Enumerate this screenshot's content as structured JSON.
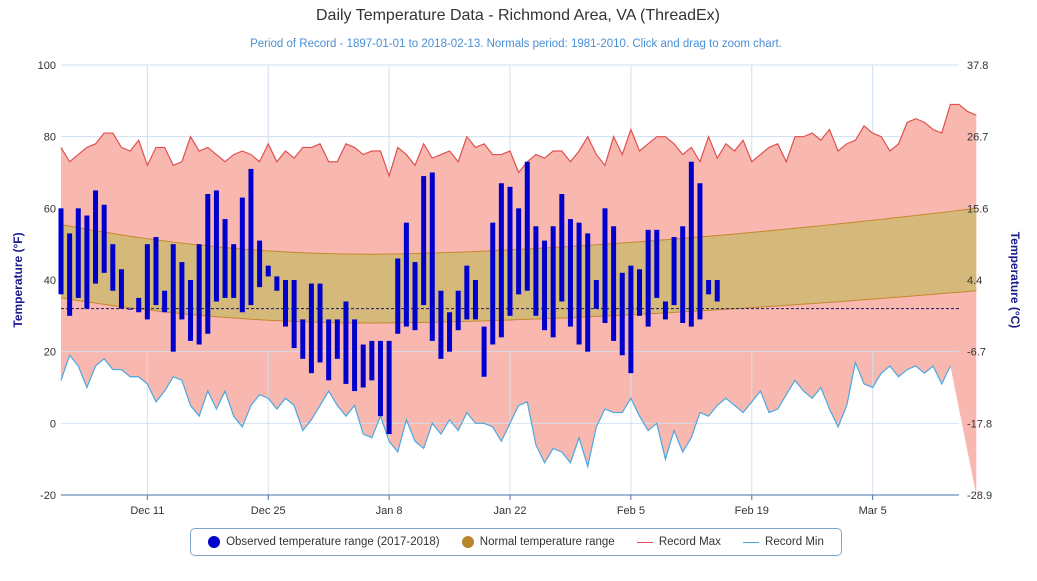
{
  "chart_data": {
    "type": "area",
    "title": "Daily Temperature Data - Richmond Area, VA (ThreadEx)",
    "subtitle": "Period of Record - 1897-01-01 to 2018-02-13. Normals period: 1981-2010. Click and drag to zoom chart.",
    "ylabel": "Temperature (°F)",
    "ylabel_right": "Temperature (°C)",
    "ylim": [
      -20,
      100
    ],
    "y_ticks": [
      "-20",
      "0",
      "20",
      "40",
      "60",
      "80",
      "100"
    ],
    "y_ticks_right": [
      "-28.9",
      "-17.8",
      "-6.7",
      "4.4",
      "15.6",
      "26.7",
      "37.8"
    ],
    "x_tick_labels": [
      "Dec 11",
      "Dec 25",
      "Jan 8",
      "Jan 22",
      "Feb 5",
      "Feb 19",
      "Mar 5"
    ],
    "x_tick_dates": [
      "2017-12-11",
      "2017-12-25",
      "2018-01-08",
      "2018-01-22",
      "2018-02-05",
      "2018-02-19",
      "2018-03-05"
    ],
    "x_range": [
      "2017-12-01",
      "2018-03-15"
    ],
    "freezing_line": 32,
    "grid": true,
    "legend_position": "bottom",
    "colors": {
      "observed": "#0000cc",
      "normal_band": "#d4b97a",
      "record_max_fill": "#f8b8b0",
      "record_max_line": "#e05050",
      "record_min_fill": "#dcfafa",
      "record_min_line": "#4aa8e0",
      "grid": "#cfe0f0"
    },
    "series": [
      {
        "name": "Observed temperature range (2017-2018)",
        "start_date": "2017-12-01",
        "low": [
          36,
          30,
          35,
          32,
          39,
          42,
          37,
          32,
          32,
          31,
          29,
          33,
          31,
          20,
          29,
          23,
          22,
          25,
          34,
          35,
          35,
          31,
          33,
          38,
          41,
          37,
          27,
          21,
          18,
          14,
          17,
          12,
          18,
          11,
          9,
          10,
          12,
          2,
          -3,
          25,
          27,
          26,
          33,
          23,
          18,
          20,
          26,
          29,
          29,
          13,
          22,
          24,
          30,
          36,
          37,
          30,
          26,
          24,
          34,
          27,
          22,
          20,
          32,
          28,
          23,
          19,
          14,
          30,
          27,
          35,
          29,
          33,
          28,
          27,
          29,
          36,
          34
        ],
        "high": [
          60,
          53,
          60,
          58,
          65,
          61,
          50,
          43,
          32,
          35,
          50,
          52,
          37,
          50,
          45,
          40,
          50,
          64,
          65,
          57,
          50,
          63,
          71,
          51,
          44,
          41,
          40,
          40,
          29,
          39,
          39,
          29,
          29,
          34,
          29,
          22,
          23,
          23,
          23,
          46,
          56,
          45,
          69,
          70,
          37,
          31,
          37,
          44,
          40,
          27,
          56,
          67,
          66,
          60,
          73,
          55,
          51,
          55,
          64,
          57,
          56,
          53,
          40,
          60,
          55,
          42,
          44,
          43,
          54,
          54,
          34,
          52,
          55,
          73,
          67,
          40,
          40
        ]
      },
      {
        "name": "Normal temperature range",
        "normal_high_start": 55.5,
        "normal_high_min": 47.2,
        "normal_high_end": 60,
        "normal_low_start": 35,
        "normal_low_min": 28,
        "normal_low_end": 37
      },
      {
        "name": "Record Max",
        "values": [
          77,
          73,
          75,
          77,
          78,
          81,
          81,
          77,
          76,
          79,
          72,
          77,
          77,
          72,
          73,
          80,
          76,
          77,
          75,
          73,
          75,
          76,
          75,
          73,
          78,
          73,
          76,
          74,
          77,
          77,
          78,
          73,
          73,
          78,
          77,
          75,
          76,
          76,
          69,
          77,
          75,
          72,
          78,
          74,
          75,
          76,
          73,
          80,
          77,
          78,
          75,
          75,
          76,
          70,
          73,
          75,
          74,
          76,
          76,
          73,
          76,
          80,
          75,
          72,
          80,
          75,
          82,
          76,
          78,
          80,
          80,
          78,
          75,
          77,
          73,
          80,
          74,
          78,
          76,
          79,
          73,
          75,
          77,
          78,
          73,
          80,
          80,
          81,
          79,
          82,
          76,
          78,
          79,
          83,
          81,
          80,
          76,
          78,
          84,
          85,
          84,
          82,
          81,
          89,
          89,
          87,
          86
        ]
      },
      {
        "name": "Record Min",
        "values": [
          12,
          19,
          16,
          10,
          16,
          18,
          15,
          15,
          13,
          13,
          11,
          6,
          9,
          13,
          12,
          5,
          2,
          9,
          4,
          9,
          2,
          -1,
          5,
          8,
          7,
          4,
          7,
          5,
          -2,
          1,
          5,
          9,
          5,
          2,
          5,
          -3,
          -4,
          2,
          -5,
          -8,
          1,
          -5,
          -7,
          0,
          -3,
          1,
          -2,
          3,
          0,
          0,
          -1,
          -5,
          0,
          5,
          6,
          -6,
          -11,
          -7,
          -8,
          -11,
          -4,
          -12,
          -1,
          4,
          3,
          3,
          7,
          2,
          -2,
          0,
          -10,
          -2,
          -8,
          -4,
          3,
          2,
          5,
          7,
          5,
          3,
          6,
          9,
          3,
          4,
          8,
          12,
          9,
          7,
          10,
          4,
          -1,
          5,
          17,
          11,
          10,
          14,
          16,
          13,
          15,
          16,
          14,
          16,
          11,
          16
        ]
      }
    ],
    "legend": {
      "observed": "Observed temperature range (2017-2018)",
      "normal": "Normal temperature range",
      "record_max": "Record Max",
      "record_min": "Record Min"
    }
  }
}
